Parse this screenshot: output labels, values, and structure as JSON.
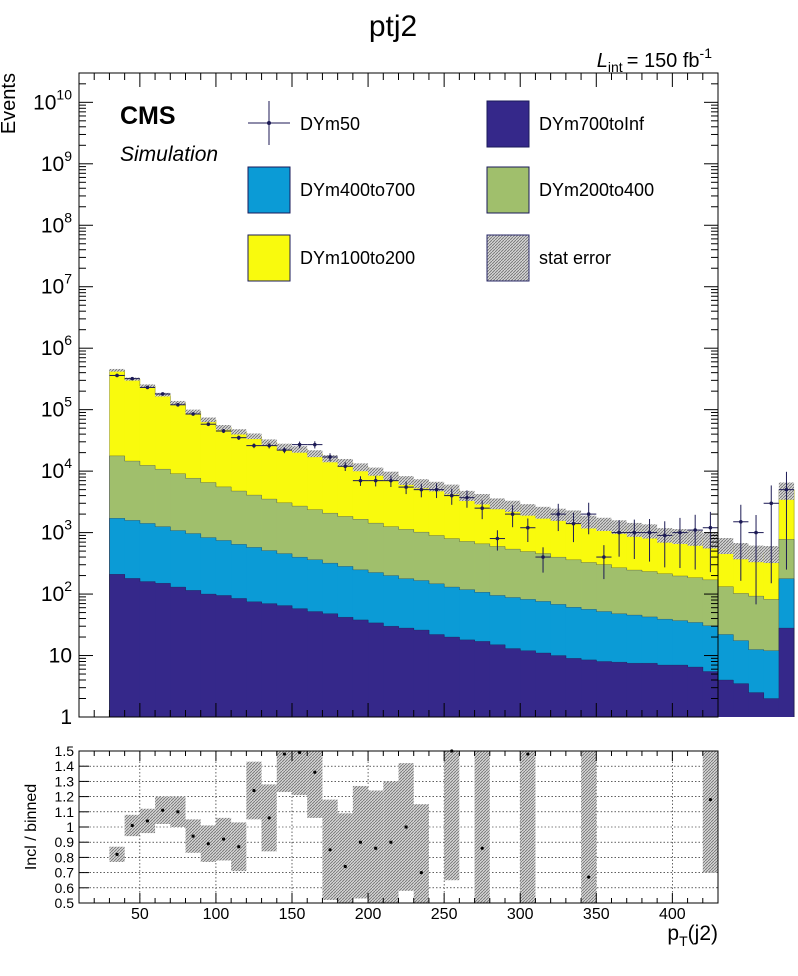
{
  "title": "ptj2",
  "lumi": {
    "prefix": "L",
    "sub": "int",
    "value": "= 150 fb",
    "sup": "-1"
  },
  "cms": {
    "label": "CMS",
    "sublabel": "Simulation"
  },
  "colors": {
    "DYm700toInf": "#35288a",
    "DYm400to700": "#0b9bd6",
    "DYm200to400": "#a0bf6c",
    "DYm100to200": "#f9fa0d",
    "marker": "#1c1a55",
    "band": "#b5b5b5"
  },
  "chart_data": [
    {
      "type": "bar",
      "stacked": true,
      "yscale": "log",
      "ylabel": "Events",
      "xlabel": "",
      "xlim": [
        10,
        430
      ],
      "ylim": [
        1,
        30000000000
      ],
      "bin_width": 10,
      "x_start": 30,
      "y_ticks": [
        {
          "value": 1,
          "base": "1",
          "exp": ""
        },
        {
          "value": 10,
          "base": "10",
          "exp": ""
        },
        {
          "value": 100,
          "base": "10",
          "exp": "2"
        },
        {
          "value": 1000,
          "base": "10",
          "exp": "3"
        },
        {
          "value": 10000,
          "base": "10",
          "exp": "4"
        },
        {
          "value": 100000,
          "base": "10",
          "exp": "5"
        },
        {
          "value": 1000000,
          "base": "10",
          "exp": "6"
        },
        {
          "value": 10000000,
          "base": "10",
          "exp": "7"
        },
        {
          "value": 100000000,
          "base": "10",
          "exp": "8"
        },
        {
          "value": 1000000000,
          "base": "10",
          "exp": "9"
        },
        {
          "value": 10000000000,
          "base": "10",
          "exp": "10"
        }
      ],
      "legend": [
        {
          "name": "DYm50",
          "style": "marker"
        },
        {
          "name": "DYm700toInf",
          "style": "fill"
        },
        {
          "name": "DYm400to700",
          "style": "fill"
        },
        {
          "name": "DYm200to400",
          "style": "fill"
        },
        {
          "name": "DYm100to200",
          "style": "fill"
        },
        {
          "name": "stat error",
          "style": "hatch"
        }
      ],
      "series": [
        {
          "name": "DYm700toInf",
          "values": [
            210,
            180,
            160,
            150,
            130,
            115,
            100,
            95,
            85,
            75,
            70,
            65,
            58,
            52,
            48,
            42,
            38,
            34,
            30,
            28,
            26,
            22,
            20,
            18,
            17,
            15,
            13,
            12,
            11,
            10,
            9,
            8.5,
            8,
            7.8,
            7.5,
            7.5,
            7,
            7,
            6.5,
            5.5,
            4,
            3.5,
            2.5,
            2,
            28
          ]
        },
        {
          "name": "DYm400to700",
          "values": [
            1500,
            1400,
            1250,
            1100,
            950,
            850,
            730,
            650,
            560,
            500,
            440,
            390,
            340,
            310,
            270,
            240,
            210,
            190,
            170,
            150,
            140,
            125,
            110,
            100,
            90,
            80,
            75,
            70,
            65,
            58,
            52,
            48,
            44,
            40,
            38,
            35,
            32,
            30,
            28,
            25,
            18,
            14,
            10,
            10,
            150
          ]
        },
        {
          "name": "DYm200to400",
          "values": [
            16000,
            13000,
            11000,
            9500,
            8000,
            6700,
            5700,
            4800,
            4100,
            3500,
            3000,
            2600,
            2300,
            2000,
            1750,
            1550,
            1400,
            1200,
            1050,
            950,
            850,
            750,
            670,
            600,
            550,
            500,
            450,
            410,
            380,
            330,
            300,
            270,
            250,
            220,
            200,
            190,
            175,
            160,
            150,
            140,
            110,
            85,
            80,
            70,
            600
          ]
        },
        {
          "name": "DYm100to200",
          "values": [
            420000,
            300000,
            230000,
            165000,
            120000,
            85000,
            62000,
            46000,
            39000,
            33000,
            26000,
            22000,
            20000,
            17000,
            14000,
            12000,
            10000,
            8500,
            7200,
            6000,
            5300,
            4800,
            4300,
            3300,
            2900,
            2400,
            2200,
            1900,
            1700,
            1600,
            1500,
            1200,
            1100,
            1000,
            900,
            850,
            720,
            700,
            660,
            600,
            500,
            420,
            380,
            380,
            4200
          ]
        },
        {
          "name": "DYm50",
          "values": [
            360000,
            320000,
            230000,
            180000,
            120000,
            85000,
            58000,
            45000,
            35000,
            26000,
            26000,
            22000,
            27000,
            27000,
            17000,
            12000,
            7000,
            7000,
            7000,
            5500,
            5000,
            5000,
            4000,
            3700,
            2500,
            800,
            2000,
            1200,
            400,
            2000,
            1400,
            2000,
            400,
            1000,
            1000,
            1000,
            900,
            1000,
            1100,
            1200,
            null,
            1500,
            1000,
            3000,
            5000
          ]
        }
      ]
    },
    {
      "type": "scatter",
      "xlabel": "p",
      "xlabel_sub": "T",
      "xlabel_suffix": "(j2)",
      "ylabel": "Incl / binned",
      "xlim": [
        10,
        430
      ],
      "ylim": [
        0.5,
        1.5
      ],
      "x_ticks": [
        50,
        100,
        150,
        200,
        250,
        300,
        350,
        400
      ],
      "y_ticks": [
        "0.5",
        "0.6",
        "0.7",
        "0.8",
        "0.9",
        "1",
        "1.1",
        "1.2",
        "1.3",
        "1.4",
        "1.5"
      ],
      "points": [
        {
          "x": 35,
          "y": 0.82,
          "err": 0.05
        },
        {
          "x": 45,
          "y": 1.01,
          "err": 0.07
        },
        {
          "x": 55,
          "y": 1.04,
          "err": 0.08
        },
        {
          "x": 65,
          "y": 1.11,
          "err": 0.09
        },
        {
          "x": 75,
          "y": 1.1,
          "err": 0.1
        },
        {
          "x": 85,
          "y": 0.94,
          "err": 0.11
        },
        {
          "x": 95,
          "y": 0.89,
          "err": 0.12
        },
        {
          "x": 105,
          "y": 0.92,
          "err": 0.14
        },
        {
          "x": 115,
          "y": 0.87,
          "err": 0.16
        },
        {
          "x": 125,
          "y": 1.24,
          "err": 0.19
        },
        {
          "x": 135,
          "y": 1.06,
          "err": 0.22
        },
        {
          "x": 145,
          "y": 1.48,
          "err": 0.25
        },
        {
          "x": 155,
          "y": 1.49,
          "err": 0.28
        },
        {
          "x": 165,
          "y": 1.36,
          "err": 0.3
        },
        {
          "x": 175,
          "y": 0.85,
          "err": 0.33
        },
        {
          "x": 185,
          "y": 0.74,
          "err": 0.35
        },
        {
          "x": 195,
          "y": 0.9,
          "err": 0.37
        },
        {
          "x": 205,
          "y": 0.86,
          "err": 0.38
        },
        {
          "x": 215,
          "y": 0.9,
          "err": 0.4
        },
        {
          "x": 225,
          "y": 1.0,
          "err": 0.42
        },
        {
          "x": 235,
          "y": 0.7,
          "err": 0.45
        },
        {
          "x": 255,
          "y": 1.5,
          "err": 0.85
        },
        {
          "x": 275,
          "y": 0.86,
          "err": 1.0
        },
        {
          "x": 305,
          "y": 1.48,
          "err": 1.0
        },
        {
          "x": 345,
          "y": 0.67,
          "err": 1.0
        },
        {
          "x": 425,
          "y": 1.18,
          "err": 0.48
        }
      ]
    }
  ]
}
